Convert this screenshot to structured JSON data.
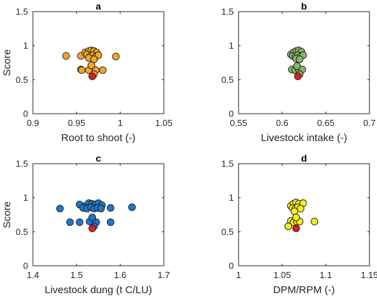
{
  "chart_data": [
    {
      "type": "scatter",
      "title": "a",
      "xlabel": "Root to shoot (-)",
      "ylabel": "Score",
      "xlim": [
        0.9,
        1.05
      ],
      "ylim": [
        0,
        1.5
      ],
      "xticks": [
        "0.9",
        "0.95",
        "1",
        "1.05"
      ],
      "yticks": [
        "0",
        "0.5",
        "1",
        "1.5"
      ],
      "color": "#F5A623",
      "highlight_color": "#E02020",
      "points": [
        {
          "x": 0.938,
          "y": 0.85
        },
        {
          "x": 0.955,
          "y": 0.85
        },
        {
          "x": 0.995,
          "y": 0.84
        },
        {
          "x": 0.96,
          "y": 0.9
        },
        {
          "x": 0.964,
          "y": 0.92
        },
        {
          "x": 0.967,
          "y": 0.93
        },
        {
          "x": 0.97,
          "y": 0.92
        },
        {
          "x": 0.973,
          "y": 0.9
        },
        {
          "x": 0.962,
          "y": 0.87
        },
        {
          "x": 0.966,
          "y": 0.85
        },
        {
          "x": 0.969,
          "y": 0.86
        },
        {
          "x": 0.972,
          "y": 0.84
        },
        {
          "x": 0.975,
          "y": 0.86
        },
        {
          "x": 0.964,
          "y": 0.82
        },
        {
          "x": 0.97,
          "y": 0.8
        },
        {
          "x": 0.955,
          "y": 0.65
        },
        {
          "x": 0.956,
          "y": 0.64
        },
        {
          "x": 0.964,
          "y": 0.64
        },
        {
          "x": 0.972,
          "y": 0.64
        },
        {
          "x": 0.98,
          "y": 0.64
        },
        {
          "x": 0.967,
          "y": 0.71
        },
        {
          "x": 0.97,
          "y": 0.58
        }
      ],
      "highlight": {
        "x": 0.968,
        "y": 0.55
      }
    },
    {
      "type": "scatter",
      "title": "b",
      "xlabel": "Livestock intake (-)",
      "ylabel": "",
      "xlim": [
        0.55,
        0.7
      ],
      "ylim": [
        0,
        1.5
      ],
      "xticks": [
        "0.55",
        "0.6",
        "0.65",
        "0.7"
      ],
      "yticks": [
        "0",
        "0.5",
        "1",
        "1.5"
      ],
      "color": "#8DB56A",
      "highlight_color": "#E02020",
      "points": [
        {
          "x": 0.61,
          "y": 0.87
        },
        {
          "x": 0.613,
          "y": 0.9
        },
        {
          "x": 0.616,
          "y": 0.92
        },
        {
          "x": 0.619,
          "y": 0.93
        },
        {
          "x": 0.622,
          "y": 0.91
        },
        {
          "x": 0.612,
          "y": 0.85
        },
        {
          "x": 0.615,
          "y": 0.84
        },
        {
          "x": 0.618,
          "y": 0.86
        },
        {
          "x": 0.621,
          "y": 0.84
        },
        {
          "x": 0.624,
          "y": 0.86
        },
        {
          "x": 0.616,
          "y": 0.81
        },
        {
          "x": 0.62,
          "y": 0.8
        },
        {
          "x": 0.611,
          "y": 0.65
        },
        {
          "x": 0.615,
          "y": 0.64
        },
        {
          "x": 0.619,
          "y": 0.65
        },
        {
          "x": 0.623,
          "y": 0.65
        },
        {
          "x": 0.617,
          "y": 0.7
        },
        {
          "x": 0.62,
          "y": 0.58
        }
      ],
      "highlight": {
        "x": 0.618,
        "y": 0.55
      }
    },
    {
      "type": "scatter",
      "title": "c",
      "xlabel": "Livestock dung (t C/LU)",
      "ylabel": "Score",
      "xlim": [
        1.4,
        1.7
      ],
      "ylim": [
        0,
        1.5
      ],
      "xticks": [
        "1.4",
        "1.5",
        "1.6",
        "1.7"
      ],
      "yticks": [
        "0",
        "0.5",
        "1",
        "1.5"
      ],
      "color": "#1F78C8",
      "highlight_color": "#E02020",
      "points": [
        {
          "x": 1.462,
          "y": 0.84
        },
        {
          "x": 1.507,
          "y": 0.9
        },
        {
          "x": 1.52,
          "y": 0.88
        },
        {
          "x": 1.528,
          "y": 0.92
        },
        {
          "x": 1.535,
          "y": 0.91
        },
        {
          "x": 1.542,
          "y": 0.9
        },
        {
          "x": 1.55,
          "y": 0.92
        },
        {
          "x": 1.558,
          "y": 0.89
        },
        {
          "x": 1.515,
          "y": 0.85
        },
        {
          "x": 1.524,
          "y": 0.84
        },
        {
          "x": 1.533,
          "y": 0.86
        },
        {
          "x": 1.54,
          "y": 0.84
        },
        {
          "x": 1.548,
          "y": 0.85
        },
        {
          "x": 1.556,
          "y": 0.84
        },
        {
          "x": 1.578,
          "y": 0.85
        },
        {
          "x": 1.627,
          "y": 0.86
        },
        {
          "x": 1.485,
          "y": 0.64
        },
        {
          "x": 1.507,
          "y": 0.64
        },
        {
          "x": 1.53,
          "y": 0.65
        },
        {
          "x": 1.545,
          "y": 0.64
        },
        {
          "x": 1.578,
          "y": 0.64
        },
        {
          "x": 1.536,
          "y": 0.71
        },
        {
          "x": 1.54,
          "y": 0.58
        }
      ],
      "highlight": {
        "x": 1.536,
        "y": 0.55
      }
    },
    {
      "type": "scatter",
      "title": "d",
      "xlabel": "DPM/RPM (-)",
      "ylabel": "",
      "xlim": [
        1.0,
        1.15
      ],
      "ylim": [
        0,
        1.5
      ],
      "xticks": [
        "1",
        "1.05",
        "1.1",
        "1.15"
      ],
      "yticks": [
        "0",
        "0.5",
        "1",
        "1.5"
      ],
      "color": "#F5EE1E",
      "highlight_color": "#E02020",
      "points": [
        {
          "x": 1.06,
          "y": 0.88
        },
        {
          "x": 1.063,
          "y": 0.91
        },
        {
          "x": 1.066,
          "y": 0.93
        },
        {
          "x": 1.069,
          "y": 0.91
        },
        {
          "x": 1.074,
          "y": 0.92
        },
        {
          "x": 1.062,
          "y": 0.85
        },
        {
          "x": 1.065,
          "y": 0.84
        },
        {
          "x": 1.068,
          "y": 0.86
        },
        {
          "x": 1.071,
          "y": 0.84
        },
        {
          "x": 1.064,
          "y": 0.8
        },
        {
          "x": 1.06,
          "y": 0.66
        },
        {
          "x": 1.063,
          "y": 0.64
        },
        {
          "x": 1.067,
          "y": 0.65
        },
        {
          "x": 1.07,
          "y": 0.65
        },
        {
          "x": 1.087,
          "y": 0.65
        },
        {
          "x": 1.057,
          "y": 0.58
        },
        {
          "x": 1.066,
          "y": 0.71
        }
      ],
      "highlight": {
        "x": 1.066,
        "y": 0.55
      }
    }
  ]
}
